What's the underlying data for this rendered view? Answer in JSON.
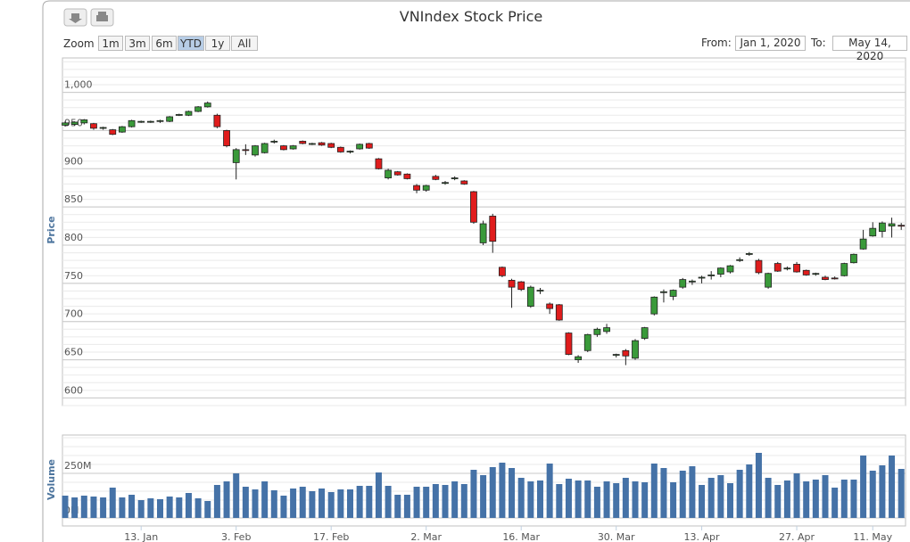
{
  "ui": {
    "zoom_label": "Zoom",
    "zoom_buttons": [
      "1m",
      "3m",
      "6m",
      "YTD",
      "1y",
      "All"
    ],
    "selected": "YTD",
    "from_label": "From:",
    "from": "Jan 1, 2020",
    "to_label": "To:",
    "to": "May 14, 2020"
  },
  "chart_data": [
    {
      "type": "candlestick",
      "title": "VNIndex Stock Price",
      "y_label": "Price",
      "up_color": "#3a9a3a",
      "down_color": "#e01c1c",
      "x": [
        "2019-12-31",
        "2020-01-02",
        "2020-01-03",
        "2020-01-06",
        "2020-01-07",
        "2020-01-08",
        "2020-01-09",
        "2020-01-10",
        "2020-01-13",
        "2020-01-14",
        "2020-01-15",
        "2020-01-16",
        "2020-01-17",
        "2020-01-20",
        "2020-01-21",
        "2020-01-22",
        "2020-01-30",
        "2020-01-31",
        "2020-02-03",
        "2020-02-04",
        "2020-02-05",
        "2020-02-06",
        "2020-02-07",
        "2020-02-10",
        "2020-02-11",
        "2020-02-12",
        "2020-02-13",
        "2020-02-14",
        "2020-02-17",
        "2020-02-18",
        "2020-02-19",
        "2020-02-20",
        "2020-02-21",
        "2020-02-24",
        "2020-02-25",
        "2020-02-26",
        "2020-02-27",
        "2020-02-28",
        "2020-03-02",
        "2020-03-03",
        "2020-03-04",
        "2020-03-05",
        "2020-03-06",
        "2020-03-09",
        "2020-03-10",
        "2020-03-11",
        "2020-03-12",
        "2020-03-13",
        "2020-03-16",
        "2020-03-17",
        "2020-03-18",
        "2020-03-19",
        "2020-03-20",
        "2020-03-23",
        "2020-03-24",
        "2020-03-25",
        "2020-03-26",
        "2020-03-27",
        "2020-03-30",
        "2020-03-31",
        "2020-04-01",
        "2020-04-03",
        "2020-04-06",
        "2020-04-07",
        "2020-04-08",
        "2020-04-09",
        "2020-04-10",
        "2020-04-13",
        "2020-04-14",
        "2020-04-15",
        "2020-04-16",
        "2020-04-17",
        "2020-04-20",
        "2020-04-21",
        "2020-04-22",
        "2020-04-23",
        "2020-04-24",
        "2020-04-27",
        "2020-04-28",
        "2020-04-29",
        "2020-05-04",
        "2020-05-05",
        "2020-05-06",
        "2020-05-07",
        "2020-05-08",
        "2020-05-11",
        "2020-05-12",
        "2020-05-13",
        "2020-05-14"
      ],
      "open": [
        957,
        958,
        960,
        959,
        953,
        951,
        948,
        955,
        961,
        961,
        962,
        962,
        970,
        970,
        975,
        981,
        970,
        950,
        908,
        925,
        918,
        921,
        935,
        930,
        926,
        936,
        932,
        934,
        933,
        928,
        922,
        926,
        933,
        913,
        888,
        896,
        893,
        878,
        872,
        890,
        881,
        887,
        884,
        870,
        803,
        838,
        771,
        754,
        752,
        720,
        740,
        723,
        722,
        685,
        650,
        662,
        683,
        687,
        656,
        662,
        652,
        678,
        710,
        738,
        733,
        745,
        752,
        757,
        760,
        762,
        765,
        780,
        788,
        780,
        745,
        776,
        769,
        775,
        767,
        762,
        758,
        757,
        760,
        777,
        795,
        812,
        818,
        825,
        826
      ],
      "high": [
        962,
        962,
        965,
        960,
        955,
        952,
        956,
        964,
        963,
        963,
        964,
        969,
        972,
        976,
        982,
        988,
        972,
        951,
        927,
        932,
        931,
        934,
        938,
        931,
        931,
        937,
        934,
        935,
        934,
        929,
        924,
        933,
        934,
        914,
        900,
        897,
        894,
        880,
        879,
        892,
        884,
        890,
        885,
        871,
        832,
        841,
        772,
        756,
        753,
        747,
        744,
        725,
        723,
        686,
        656,
        684,
        692,
        697,
        658,
        664,
        677,
        693,
        733,
        742,
        742,
        757,
        755,
        760,
        766,
        771,
        774,
        784,
        791,
        782,
        764,
        778,
        772,
        778,
        768,
        764,
        760,
        759,
        777,
        789,
        820,
        830,
        831,
        836,
        829
      ],
      "low": [
        955,
        956,
        958,
        951,
        951,
        944,
        947,
        954,
        960,
        960,
        960,
        961,
        969,
        969,
        974,
        980,
        953,
        928,
        886,
        918,
        916,
        920,
        933,
        924,
        925,
        932,
        931,
        930,
        927,
        921,
        920,
        925,
        926,
        899,
        886,
        891,
        886,
        868,
        870,
        885,
        879,
        885,
        879,
        828,
        800,
        790,
        758,
        718,
        740,
        718,
        736,
        710,
        701,
        656,
        646,
        660,
        680,
        684,
        653,
        643,
        650,
        676,
        708,
        725,
        728,
        743,
        748,
        750,
        755,
        758,
        763,
        778,
        786,
        762,
        743,
        765,
        767,
        764,
        760,
        760,
        754,
        755,
        759,
        776,
        794,
        811,
        810,
        810,
        820
      ],
      "close": [
        960,
        961,
        964,
        953,
        954,
        945,
        955,
        963,
        962,
        962,
        963,
        968,
        971,
        975,
        981,
        986,
        955,
        930,
        925,
        924,
        930,
        933,
        936,
        925,
        930,
        933,
        933,
        931,
        928,
        922,
        923,
        932,
        927,
        900,
        898,
        892,
        887,
        872,
        878,
        886,
        882,
        888,
        880,
        830,
        828,
        805,
        760,
        745,
        742,
        745,
        741,
        717,
        702,
        657,
        654,
        683,
        690,
        692,
        657,
        655,
        675,
        692,
        732,
        739,
        741,
        755,
        753,
        758,
        761,
        770,
        773,
        781,
        789,
        764,
        763,
        766,
        770,
        765,
        761,
        763,
        755,
        756,
        776,
        788,
        808,
        822,
        829,
        828,
        825
      ],
      "ylim": [
        590,
        1045
      ],
      "yticks": [
        600,
        650,
        700,
        750,
        800,
        850,
        900,
        950,
        {
          "value": 1000,
          "label": "1,000"
        }
      ],
      "minor_tick_interval": 10,
      "xticks": [
        {
          "value": "2020-01-13",
          "label": "13. Jan"
        },
        {
          "value": "2020-02-03",
          "label": "3. Feb"
        },
        {
          "value": "2020-02-17",
          "label": "17. Feb"
        },
        {
          "value": "2020-03-02",
          "label": "2. Mar"
        },
        {
          "value": "2020-03-16",
          "label": "16. Mar"
        },
        {
          "value": "2020-03-30",
          "label": "30. Mar"
        },
        {
          "value": "2020-04-13",
          "label": "13. Apr"
        },
        {
          "value": "2020-04-27",
          "label": "27. Apr"
        },
        {
          "value": "2020-05-11",
          "label": "11. May"
        }
      ]
    },
    {
      "type": "bar",
      "y_label": "Volume",
      "color": "#4572a7",
      "values": [
        125,
        115,
        125,
        120,
        115,
        170,
        115,
        130,
        100,
        110,
        105,
        120,
        115,
        140,
        110,
        95,
        185,
        205,
        250,
        175,
        160,
        205,
        155,
        125,
        165,
        175,
        150,
        165,
        145,
        160,
        160,
        180,
        180,
        255,
        180,
        130,
        130,
        175,
        175,
        190,
        185,
        205,
        190,
        270,
        240,
        285,
        310,
        280,
        225,
        205,
        210,
        305,
        190,
        220,
        210,
        210,
        175,
        205,
        195,
        225,
        205,
        200,
        305,
        280,
        200,
        265,
        290,
        185,
        225,
        240,
        195,
        270,
        300,
        365,
        225,
        185,
        210,
        250,
        205,
        215,
        240,
        170,
        215,
        215,
        350,
        265,
        295,
        350,
        275
      ],
      "ylim": [
        -45,
        465
      ],
      "yticks": [
        {
          "value": 0,
          "label": "0M"
        },
        {
          "value": 250,
          "label": "250M"
        }
      ],
      "minor_tick_interval": 50
    }
  ]
}
